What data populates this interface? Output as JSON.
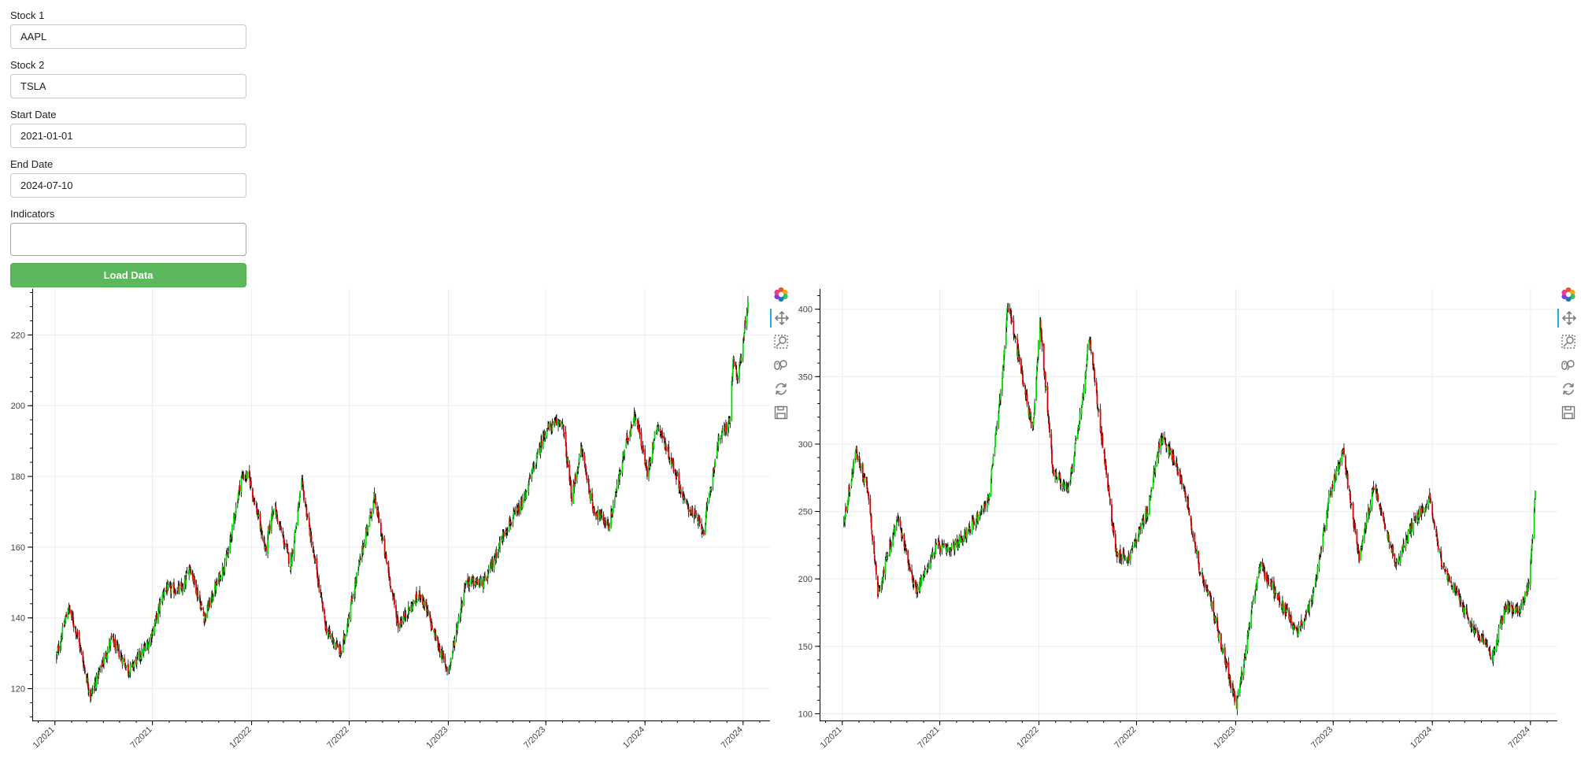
{
  "form": {
    "stock1": {
      "label": "Stock 1",
      "value": "AAPL"
    },
    "stock2": {
      "label": "Stock 2",
      "value": "TSLA"
    },
    "start_date": {
      "label": "Start Date",
      "value": "2021-01-01"
    },
    "end_date": {
      "label": "End Date",
      "value": "2024-07-10"
    },
    "indicators": {
      "label": "Indicators",
      "value": ""
    },
    "load_button": "Load Data"
  },
  "colors": {
    "up": "#00dd00",
    "down": "#dd0000",
    "wick": "#000000",
    "button": "#5cb85c",
    "grid": "#ededed",
    "active_tool": "#26aae1"
  },
  "toolbar": [
    "bokeh-logo-icon",
    "pan-icon",
    "box-zoom-icon",
    "wheel-zoom-icon",
    "reset-icon",
    "save-icon"
  ],
  "chart_data": [
    {
      "type": "candlestick",
      "ticker": "AAPL",
      "xlim": [
        "2020-11-20",
        "2024-08-20"
      ],
      "ylim": [
        111,
        233
      ],
      "grid": true,
      "yticks": [
        120,
        140,
        160,
        180,
        200,
        220
      ],
      "xticks": [
        "1/2021",
        "7/2021",
        "1/2022",
        "7/2022",
        "1/2023",
        "7/2023",
        "1/2024",
        "7/2024"
      ],
      "close_keypoints": [
        [
          "2021-01-04",
          129
        ],
        [
          "2021-01-26",
          143
        ],
        [
          "2021-02-12",
          135
        ],
        [
          "2021-03-08",
          118
        ],
        [
          "2021-04-16",
          134
        ],
        [
          "2021-05-18",
          125
        ],
        [
          "2021-06-25",
          133
        ],
        [
          "2021-07-23",
          148
        ],
        [
          "2021-08-27",
          148
        ],
        [
          "2021-09-08",
          155
        ],
        [
          "2021-10-05",
          140
        ],
        [
          "2021-11-18",
          158
        ],
        [
          "2021-12-13",
          180
        ],
        [
          "2021-12-27",
          180
        ],
        [
          "2022-01-27",
          159
        ],
        [
          "2022-02-11",
          172
        ],
        [
          "2022-03-14",
          155
        ],
        [
          "2022-04-04",
          178
        ],
        [
          "2022-05-19",
          137
        ],
        [
          "2022-06-16",
          130
        ],
        [
          "2022-07-29",
          162
        ],
        [
          "2022-08-17",
          174
        ],
        [
          "2022-09-30",
          138
        ],
        [
          "2022-10-14",
          141
        ],
        [
          "2022-11-10",
          147
        ],
        [
          "2022-12-28",
          126
        ],
        [
          "2023-01-03",
          126
        ],
        [
          "2023-02-02",
          150
        ],
        [
          "2023-03-10",
          150
        ],
        [
          "2023-04-17",
          165
        ],
        [
          "2023-05-18",
          172
        ],
        [
          "2023-06-30",
          193
        ],
        [
          "2023-07-31",
          196
        ],
        [
          "2023-08-18",
          174
        ],
        [
          "2023-09-05",
          188
        ],
        [
          "2023-09-26",
          171
        ],
        [
          "2023-10-26",
          166
        ],
        [
          "2023-11-28",
          190
        ],
        [
          "2023-12-14",
          198
        ],
        [
          "2024-01-05",
          181
        ],
        [
          "2024-01-24",
          195
        ],
        [
          "2024-02-29",
          180
        ],
        [
          "2024-03-14",
          173
        ],
        [
          "2024-04-19",
          165
        ],
        [
          "2024-05-16",
          190
        ],
        [
          "2024-06-07",
          196
        ],
        [
          "2024-06-12",
          213
        ],
        [
          "2024-06-21",
          207
        ],
        [
          "2024-07-10",
          229
        ]
      ]
    },
    {
      "type": "candlestick",
      "ticker": "TSLA",
      "xlim": [
        "2020-11-20",
        "2024-08-20"
      ],
      "ylim": [
        95,
        415
      ],
      "grid": true,
      "yticks": [
        100,
        150,
        200,
        250,
        300,
        350,
        400
      ],
      "xticks": [
        "1/2021",
        "7/2021",
        "1/2022",
        "7/2022",
        "1/2023",
        "7/2023",
        "1/2024",
        "7/2024"
      ],
      "close_keypoints": [
        [
          "2021-01-04",
          243
        ],
        [
          "2021-01-26",
          295
        ],
        [
          "2021-02-18",
          265
        ],
        [
          "2021-03-08",
          190
        ],
        [
          "2021-04-14",
          245
        ],
        [
          "2021-05-18",
          190
        ],
        [
          "2021-06-25",
          225
        ],
        [
          "2021-07-19",
          220
        ],
        [
          "2021-08-27",
          238
        ],
        [
          "2021-09-30",
          260
        ],
        [
          "2021-10-25",
          350
        ],
        [
          "2021-11-04",
          405
        ],
        [
          "2021-11-24",
          365
        ],
        [
          "2021-12-20",
          310
        ],
        [
          "2022-01-03",
          390
        ],
        [
          "2022-01-27",
          280
        ],
        [
          "2022-02-24",
          265
        ],
        [
          "2022-03-24",
          335
        ],
        [
          "2022-04-04",
          380
        ],
        [
          "2022-05-24",
          220
        ],
        [
          "2022-06-16",
          215
        ],
        [
          "2022-07-21",
          250
        ],
        [
          "2022-08-15",
          305
        ],
        [
          "2022-09-07",
          290
        ],
        [
          "2022-09-30",
          265
        ],
        [
          "2022-10-24",
          210
        ],
        [
          "2022-11-18",
          180
        ],
        [
          "2022-12-27",
          115
        ],
        [
          "2023-01-03",
          107
        ],
        [
          "2023-02-14",
          210
        ],
        [
          "2023-03-24",
          185
        ],
        [
          "2023-04-24",
          160
        ],
        [
          "2023-05-24",
          185
        ],
        [
          "2023-06-23",
          260
        ],
        [
          "2023-07-19",
          295
        ],
        [
          "2023-08-18",
          215
        ],
        [
          "2023-09-15",
          270
        ],
        [
          "2023-10-26",
          210
        ],
        [
          "2023-11-24",
          240
        ],
        [
          "2023-12-27",
          260
        ],
        [
          "2024-01-19",
          210
        ],
        [
          "2024-02-13",
          190
        ],
        [
          "2024-03-15",
          165
        ],
        [
          "2024-04-22",
          142
        ],
        [
          "2024-05-15",
          180
        ],
        [
          "2024-06-12",
          176
        ],
        [
          "2024-06-28",
          195
        ],
        [
          "2024-07-10",
          262
        ]
      ]
    }
  ]
}
